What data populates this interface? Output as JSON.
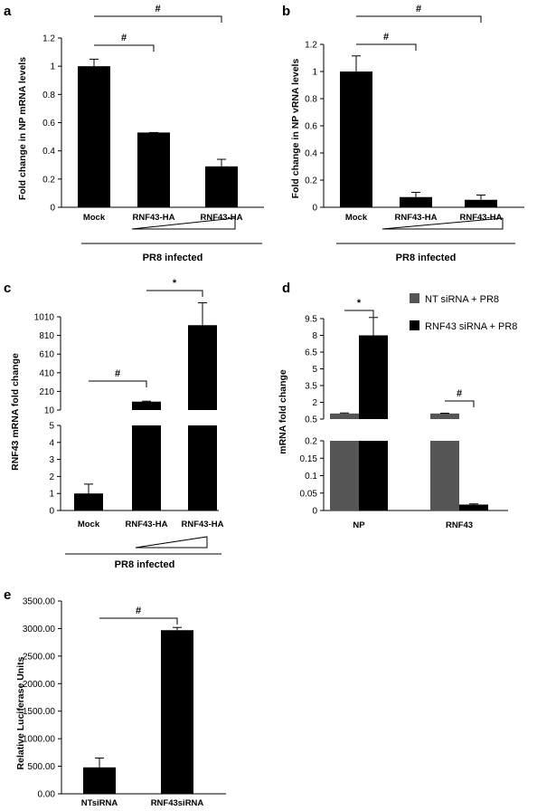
{
  "chart_data": [
    {
      "panel": "a",
      "type": "bar",
      "ylabel": "Fold change in NP mRNA levels",
      "categories": [
        "Mock",
        "RNF43-HA",
        "RNF43-HA"
      ],
      "values": [
        1.0,
        0.53,
        0.29
      ],
      "errors": [
        0.05,
        0.0,
        0.05
      ],
      "ylim": [
        0,
        1.2
      ],
      "yticks": [
        "0",
        "0.2",
        "0.4",
        "0.6",
        "0.8",
        "1",
        "1.2"
      ],
      "underlabel": "PR8 infected",
      "annotations": [
        {
          "label": "#",
          "from": 0,
          "to": 1
        },
        {
          "label": "#",
          "from": 0,
          "to": 2
        }
      ]
    },
    {
      "panel": "b",
      "type": "bar",
      "ylabel": "Fold change in NP vRNA levels",
      "categories": [
        "Mock",
        "RNF43-HA",
        "RNF43-HA"
      ],
      "values": [
        1.0,
        0.075,
        0.055
      ],
      "errors": [
        0.115,
        0.035,
        0.035
      ],
      "ylim": [
        0,
        1.2
      ],
      "yticks": [
        "0",
        "0.2",
        "0.4",
        "0.6",
        "0.8",
        "1",
        "1.2"
      ],
      "underlabel": "PR8 infected",
      "annotations": [
        {
          "label": "#",
          "from": 0,
          "to": 1
        },
        {
          "label": "#",
          "from": 0,
          "to": 2
        }
      ]
    },
    {
      "panel": "c",
      "type": "bar",
      "ylabel": "RNF43 mRNA fold change",
      "categories": [
        "Mock",
        "RNF43-HA",
        "RNF43-HA"
      ],
      "values": [
        1.0,
        100,
        920
      ],
      "errors": [
        0.55,
        5,
        240
      ],
      "axis_break": true,
      "yticks_lower": [
        "0",
        "1",
        "2",
        "3",
        "4",
        "5"
      ],
      "yticks_upper": [
        "10",
        "210",
        "410",
        "610",
        "810",
        "1010"
      ],
      "underlabel": "PR8 infected",
      "annotations": [
        {
          "label": "#",
          "from": 0,
          "to": 1
        },
        {
          "label": "*",
          "from": 1,
          "to": 2
        }
      ]
    },
    {
      "panel": "d",
      "type": "bar",
      "ylabel": "mRNA fold change",
      "categories": [
        "NP",
        "RNF43"
      ],
      "axis_break": true,
      "yticks_lower": [
        "0",
        "0.05",
        "0.1",
        "0.15",
        "0.2"
      ],
      "yticks_upper": [
        "0.5",
        "2",
        "3.5",
        "5",
        "6.5",
        "8",
        "9.5"
      ],
      "series": [
        {
          "name": "NT siRNA + PR8",
          "color": "#555555",
          "values": [
            1.0,
            1.0
          ],
          "errors": [
            0.05,
            0.03
          ]
        },
        {
          "name": "RNF43 siRNA + PR8",
          "color": "#000000",
          "values": [
            8.0,
            0.017
          ],
          "errors": [
            1.6,
            0.002
          ]
        }
      ],
      "annotations": [
        {
          "label": "*",
          "group": 0
        },
        {
          "label": "#",
          "group": 1
        }
      ]
    },
    {
      "panel": "e",
      "type": "bar",
      "ylabel": "Relative Luciferase Units",
      "categories": [
        "NTsiRNA",
        "RNF43siRNA"
      ],
      "values": [
        480,
        2970
      ],
      "errors": [
        170,
        50
      ],
      "ylim": [
        0,
        3500
      ],
      "yticks": [
        "0.00",
        "500.00",
        "1000.00",
        "1500.00",
        "2000.00",
        "2500.00",
        "3000.00",
        "3500.00"
      ],
      "annotations": [
        {
          "label": "#",
          "from": 0,
          "to": 1
        }
      ]
    }
  ]
}
